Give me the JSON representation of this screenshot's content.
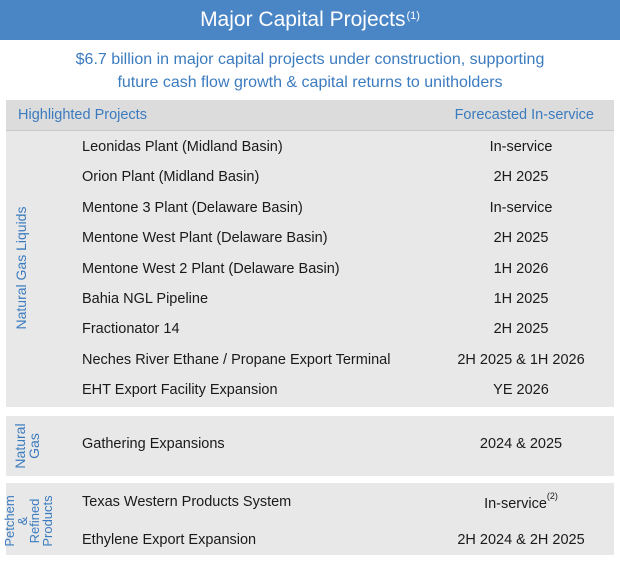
{
  "title": {
    "text": "Major Capital Projects",
    "superscript": "(1)"
  },
  "subtitle": {
    "line1": "$6.7 billion in major capital projects under construction, supporting",
    "line2": "future cash flow growth & capital returns to unitholders"
  },
  "table": {
    "header_left": "Highlighted Projects",
    "header_right": "Forecasted In-service",
    "sections": [
      {
        "label": "Natural Gas Liquids",
        "rows": [
          {
            "name": "Leonidas Plant (Midland Basin)",
            "date": "In-service"
          },
          {
            "name": "Orion Plant (Midland Basin)",
            "date": "2H 2025"
          },
          {
            "name": "Mentone 3 Plant (Delaware Basin)",
            "date": "In-service"
          },
          {
            "name": "Mentone West Plant (Delaware Basin)",
            "date": "2H 2025"
          },
          {
            "name": "Mentone West 2 Plant (Delaware Basin)",
            "date": "1H 2026"
          },
          {
            "name": "Bahia NGL Pipeline",
            "date": "1H 2025"
          },
          {
            "name": "Fractionator 14",
            "date": "2H 2025"
          },
          {
            "name": "Neches River Ethane / Propane Export Terminal",
            "date": "2H 2025 & 1H 2026"
          },
          {
            "name": "EHT Export Facility Expansion",
            "date": "YE 2026"
          }
        ]
      },
      {
        "label_line1": "Natural",
        "label_line2": "Gas",
        "rows": [
          {
            "name": "Gathering Expansions",
            "date": "2024 & 2025"
          }
        ]
      },
      {
        "label_lines": [
          "Petchem",
          "&",
          "Refined",
          "Products"
        ],
        "rows": [
          {
            "name": "Texas Western Products System",
            "date": "In-service",
            "date_sup": "(2)"
          },
          {
            "name": "Ethylene Export Expansion",
            "date": "2H 2024 & 2H 2025"
          }
        ]
      }
    ]
  }
}
